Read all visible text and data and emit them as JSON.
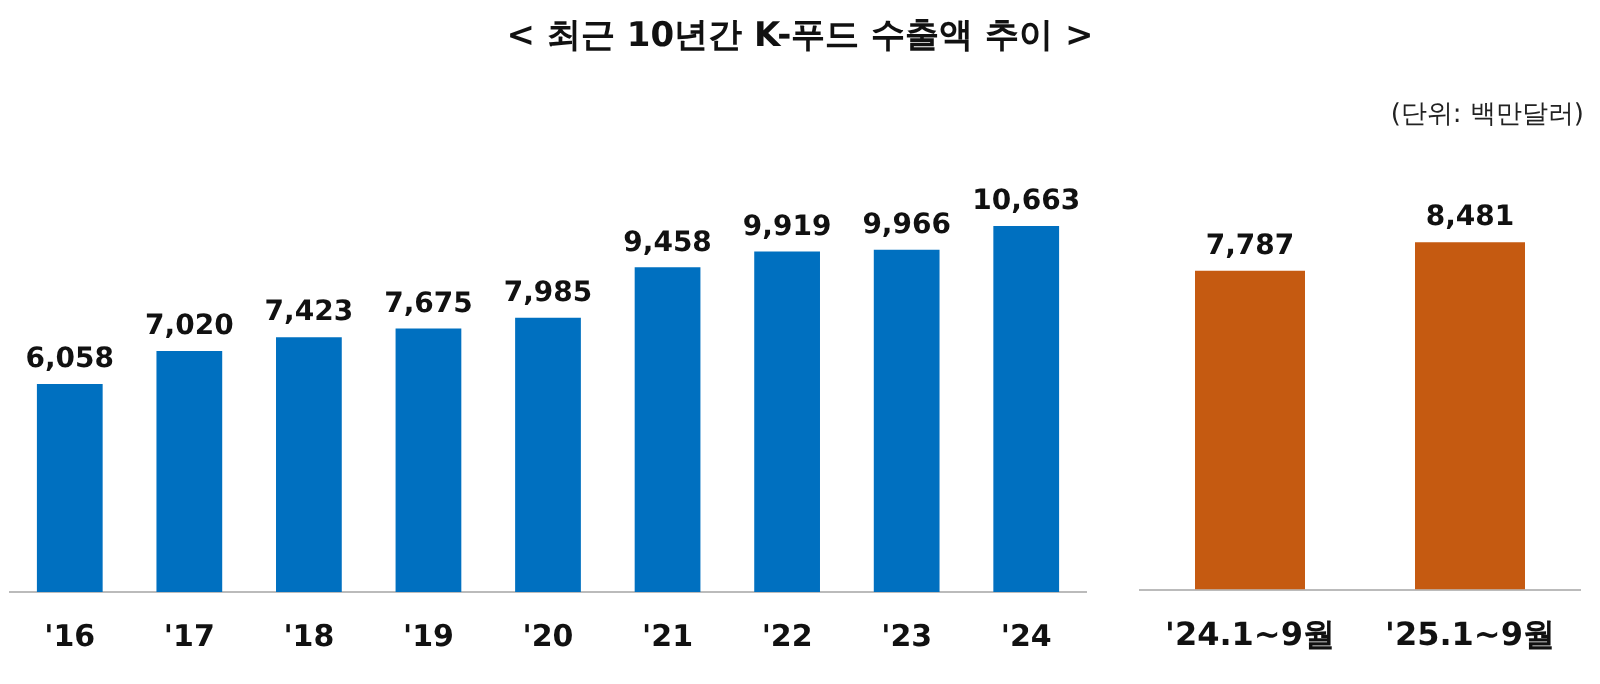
{
  "chart_data": [
    {
      "type": "bar",
      "title": "< 최근 10년간 K-푸드 수출액 추이 >",
      "annotations": [
        "(단위: 백만달러)"
      ],
      "categories": [
        "'16",
        "'17",
        "'18",
        "'19",
        "'20",
        "'21",
        "'22",
        "'23",
        "'24"
      ],
      "series": [
        {
          "color": "#0070c0",
          "values": [
            6058,
            7020,
            7423,
            7675,
            7985,
            9458,
            9919,
            9966,
            10663
          ],
          "value_labels": [
            "6,058",
            "7,020",
            "7,423",
            "7,675",
            "7,985",
            "9,458",
            "9,919",
            "9,966",
            "10,663"
          ]
        }
      ],
      "tick_labels": "x",
      "grid": false,
      "legend": false
    },
    {
      "type": "bar",
      "categories": [
        "'24.1~9월",
        "'25.1~9월"
      ],
      "series": [
        {
          "color": "#c55a11",
          "values": [
            7787,
            8481
          ],
          "value_labels": [
            "7,787",
            "8,481"
          ]
        }
      ],
      "tick_labels": "x",
      "grid": false,
      "legend": false
    }
  ]
}
